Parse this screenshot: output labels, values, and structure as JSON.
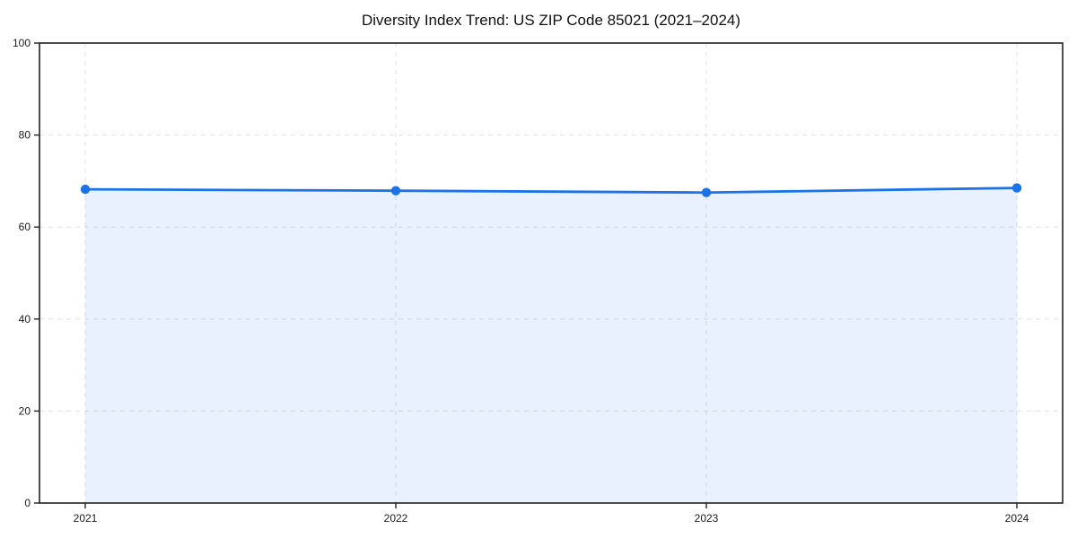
{
  "chart_data": {
    "type": "area",
    "title": "Diversity Index Trend: US ZIP Code 85021 (2021–2024)",
    "x": [
      "2021",
      "2022",
      "2023",
      "2024"
    ],
    "series": [
      {
        "name": "Diversity Index",
        "values": [
          68.2,
          67.9,
          67.5,
          68.5
        ]
      }
    ],
    "xlabel": "",
    "ylabel": "",
    "ylim": [
      0,
      100
    ],
    "yticks": [
      0,
      20,
      40,
      60,
      80,
      100
    ],
    "grid": true,
    "grid_style": "dashed",
    "legend_position": "none",
    "colors": {
      "line": "#1a73e8",
      "marker": "#1a73e8",
      "fill": "rgba(26, 115, 232, 0.10)",
      "grid": "#e0e0e0",
      "axis": "#222222",
      "tick_text": "#1a1a1a",
      "background": "#ffffff"
    }
  }
}
